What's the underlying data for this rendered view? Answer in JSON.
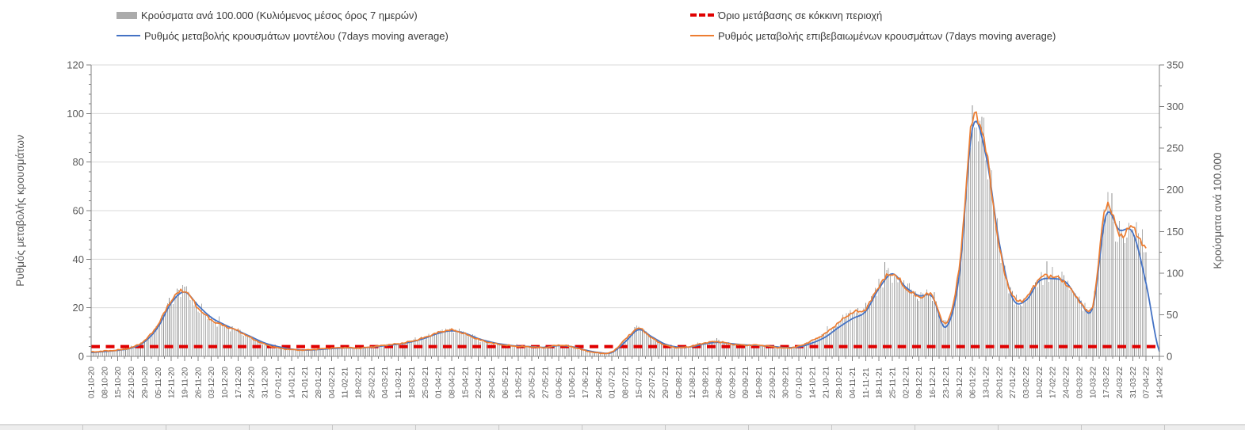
{
  "chart": {
    "legend": {
      "items": [
        {
          "id": "cases-bars",
          "label": "Κρούσματα ανά 100.000 (Κυλιόμενος μέσος όρος 7 ημερών)",
          "marker": "bar",
          "color": "#ABABAB"
        },
        {
          "id": "model-line",
          "label": "Ρυθμός μεταβολής κρουσμάτων μοντέλου (7days moving average)",
          "marker": "line",
          "color": "#4472C4"
        },
        {
          "id": "threshold-line",
          "label": "Όριο μετάβασης σε κόκκινη περιοχή",
          "marker": "dashed",
          "color": "#E00000"
        },
        {
          "id": "confirmed-line",
          "label": "Ρυθμός μεταβολής επιβεβαιωμένων κρουσμάτων (7days moving average)",
          "marker": "line",
          "color": "#ED7D31"
        }
      ]
    },
    "colors": {
      "bars": "#ABABAB",
      "bars_dark": "#8F8F8F",
      "model": "#4472C4",
      "confirmed": "#ED7D31",
      "threshold": "#E00000",
      "grid": "#D9D9D9",
      "axis": "#808080",
      "text": "#595959"
    }
  },
  "chart_data": {
    "type": "bar",
    "subtype": "combo-bar-plus-lines",
    "title": "",
    "legend_position": "top",
    "grid": "horizontal-on",
    "left_axis": {
      "title": "Ρυθμός μεταβολής κρουσμάτων",
      "min": 0,
      "max": 120,
      "tick_step": 20,
      "minor_step": 4,
      "ticks": [
        0,
        20,
        40,
        60,
        80,
        100,
        120
      ]
    },
    "right_axis": {
      "title": "Κρούσματα ανά 100.000",
      "min": 0,
      "max": 350,
      "tick_step": 50,
      "minor_step": 25,
      "ticks": [
        0,
        50,
        100,
        150,
        200,
        250,
        300,
        350
      ]
    },
    "x_labels": [
      "01-10-20",
      "08-10-20",
      "15-10-20",
      "22-10-20",
      "29-10-20",
      "05-11-20",
      "12-11-20",
      "19-11-20",
      "26-11-20",
      "03-12-20",
      "10-12-20",
      "17-12-20",
      "24-12-20",
      "31-12-20",
      "07-01-21",
      "14-01-21",
      "21-01-21",
      "28-01-21",
      "04-02-21",
      "11-02-21",
      "18-02-21",
      "25-02-21",
      "04-03-21",
      "11-03-21",
      "18-03-21",
      "25-03-21",
      "01-04-21",
      "08-04-21",
      "15-04-21",
      "22-04-21",
      "29-04-21",
      "06-05-21",
      "13-05-21",
      "20-05-21",
      "27-05-21",
      "03-06-21",
      "10-06-21",
      "17-06-21",
      "24-06-21",
      "01-07-21",
      "08-07-21",
      "15-07-21",
      "22-07-21",
      "29-07-21",
      "05-08-21",
      "12-08-21",
      "19-08-21",
      "26-08-21",
      "02-09-21",
      "09-09-21",
      "16-09-21",
      "23-09-21",
      "30-09-21",
      "07-10-21",
      "14-10-21",
      "21-10-21",
      "28-10-21",
      "04-11-21",
      "11-11-21",
      "18-11-21",
      "25-11-21",
      "02-12-21",
      "09-12-21",
      "16-12-21",
      "23-12-21",
      "30-12-21",
      "06-01-22",
      "13-01-22",
      "20-01-22",
      "27-01-22",
      "03-02-22",
      "10-02-22",
      "17-02-22",
      "24-02-22",
      "03-03-22",
      "10-03-22",
      "17-03-22",
      "24-03-22",
      "31-03-22",
      "07-04-22",
      "14-04-22"
    ],
    "series": [
      {
        "name": "Κρούσματα ανά 100.000 (Κυλιόμενος μέσος όρος 7 ημερών)",
        "type": "bar",
        "axis": "right",
        "color": "#ABABAB",
        "note": "daily bars; weekly samples at each x tick",
        "values": [
          5,
          6,
          8,
          11,
          19,
          38,
          67,
          79,
          58,
          44,
          36,
          31,
          22,
          15,
          10,
          8,
          8,
          9,
          10,
          11,
          10,
          11,
          13,
          15,
          18,
          23,
          29,
          32,
          27,
          20,
          16,
          13,
          12,
          11,
          11,
          13,
          11,
          7,
          4,
          5,
          20,
          34,
          22,
          13,
          11,
          12,
          16,
          18,
          15,
          13,
          13,
          12,
          10,
          12,
          19,
          28,
          41,
          53,
          57,
          85,
          99,
          82,
          71,
          73,
          39,
          105,
          283,
          248,
          131,
          73,
          70,
          93,
          96,
          88,
          67,
          61,
          181,
          146,
          155,
          128,
          null
        ]
      },
      {
        "name": "Ρυθμός μεταβολής κρουσμάτων μοντέλου (7days moving average)",
        "type": "line",
        "axis": "left",
        "color": "#4472C4",
        "values": [
          1.6,
          2,
          2.5,
          3.4,
          6,
          12,
          22,
          26.5,
          21,
          16,
          13,
          10.5,
          8,
          5.5,
          4,
          3,
          2.6,
          2.8,
          3.2,
          3.5,
          3.4,
          3.8,
          4.4,
          5,
          6,
          7.5,
          9.5,
          10.5,
          9.5,
          7.3,
          5.8,
          4.8,
          4.2,
          4,
          3.7,
          4.4,
          4,
          2.6,
          1.6,
          1.6,
          6,
          11,
          8,
          5,
          3.8,
          4,
          5.2,
          5.8,
          5.2,
          4.7,
          4.5,
          4.1,
          3.6,
          3.9,
          5.5,
          8,
          12,
          15.5,
          18.5,
          28,
          34,
          28.5,
          25,
          24.5,
          12,
          33,
          94,
          83,
          47,
          24,
          23,
          31,
          32,
          30.5,
          23,
          20,
          58,
          52,
          51,
          30,
          2
        ]
      },
      {
        "name": "Ρυθμός μεταβολής επιβεβαιωμένων κρουσμάτων (7days moving average)",
        "type": "line",
        "axis": "left",
        "color": "#ED7D31",
        "values": [
          1.8,
          2.2,
          2.6,
          3.6,
          6.5,
          13,
          23,
          27,
          20,
          15,
          12.5,
          10.5,
          7.5,
          5,
          3.5,
          2.8,
          2.6,
          3,
          3.4,
          3.6,
          3.4,
          3.9,
          4.6,
          5.2,
          6.2,
          7.8,
          9.8,
          10.8,
          9.2,
          7,
          5.5,
          4.6,
          4.1,
          3.9,
          3.6,
          4.6,
          3.9,
          2.4,
          1.4,
          1.8,
          7,
          11.5,
          7.5,
          4.6,
          3.6,
          4.2,
          5.6,
          6,
          5,
          4.6,
          4.6,
          4,
          3.4,
          4.2,
          6.5,
          9.5,
          14,
          18,
          19.5,
          29,
          34,
          28,
          24.5,
          25,
          13.5,
          36,
          97,
          85,
          45,
          25,
          24,
          32,
          33,
          30,
          23,
          21,
          62,
          50,
          53,
          44,
          null
        ]
      },
      {
        "name": "Όριο μετάβασης σε κόκκινη περιοχή",
        "type": "threshold-line",
        "axis": "left",
        "style": "dashed",
        "color": "#E00000",
        "value": 4
      }
    ]
  }
}
